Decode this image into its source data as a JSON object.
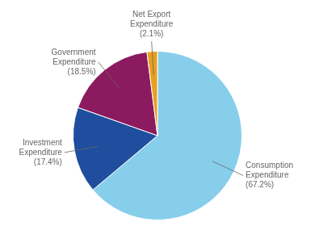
{
  "chart_data": {
    "type": "pie",
    "categories": [
      "Consumption\nExpenditure\n(67.2%)",
      "Investment\nExpenditure\n(17.4%)",
      "Government\nExpenditure\n(18.5%)",
      "Net Export\nExpenditure\n(2.1%)"
    ],
    "values": [
      67.2,
      17.4,
      18.5,
      2.1
    ],
    "colors": [
      "#87CEEB",
      "#1F4E9E",
      "#8B1A5E",
      "#E8A020"
    ]
  }
}
